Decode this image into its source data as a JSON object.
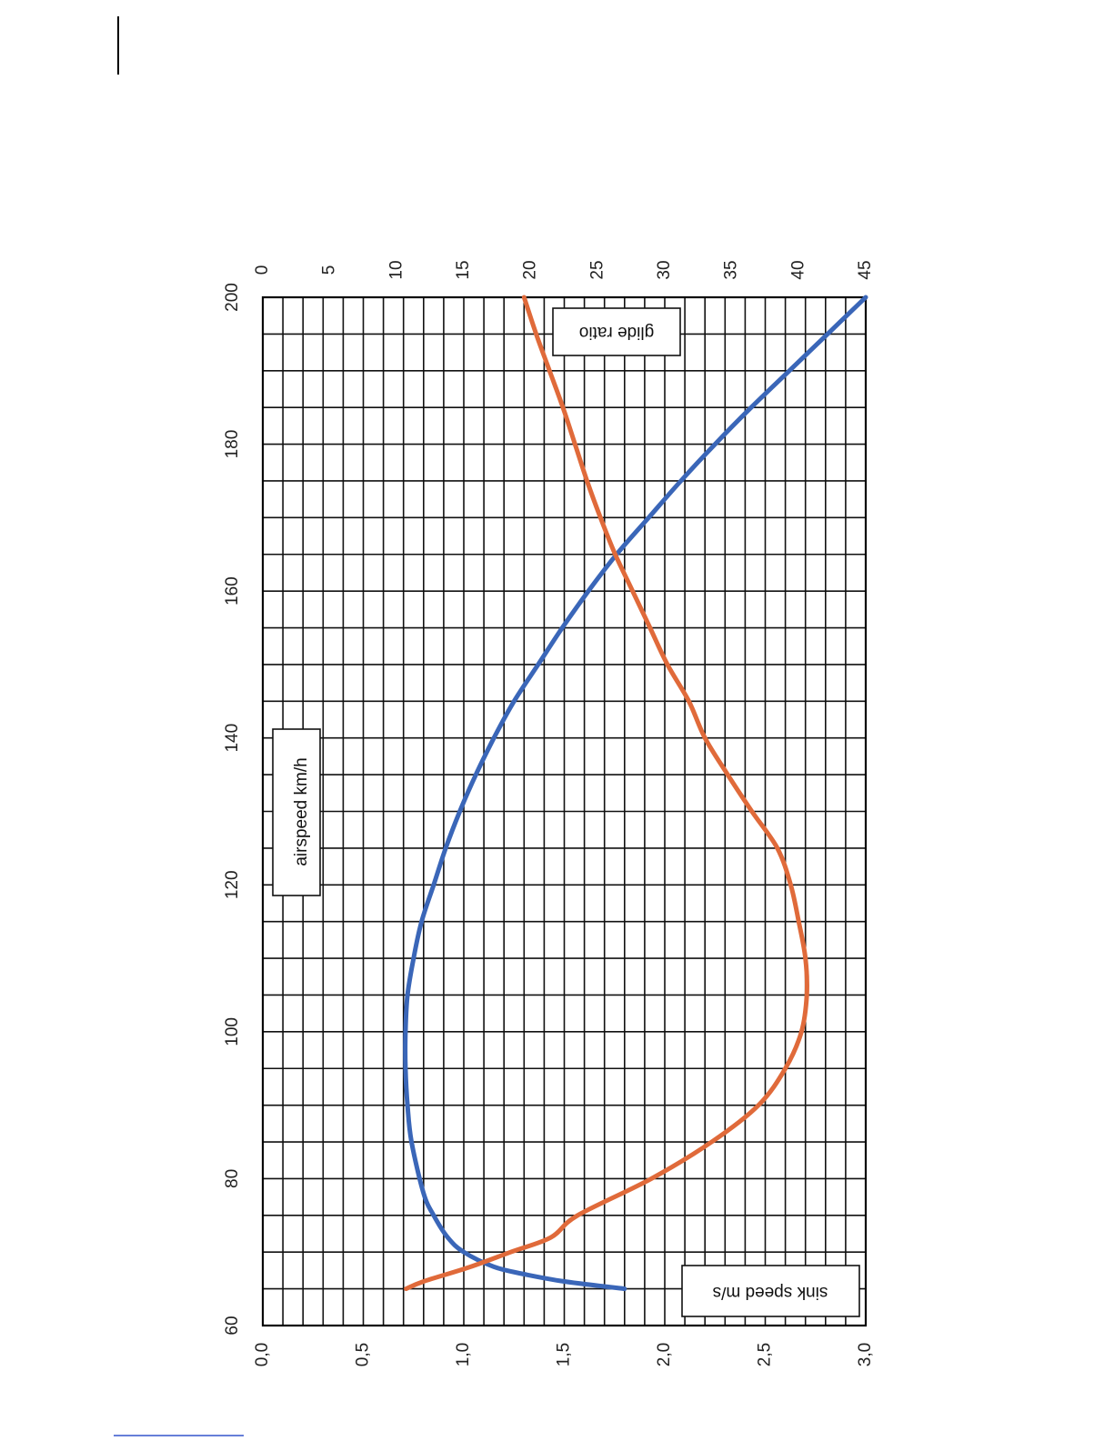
{
  "chart_data": {
    "type": "line",
    "orientation": "rotated-90",
    "x_axis": {
      "label": "airspeed km/h",
      "range": [
        60,
        200
      ],
      "ticks": [
        "60",
        "80",
        "100",
        "120",
        "140",
        "160",
        "180",
        "200"
      ],
      "minor_step": 5
    },
    "y_left": {
      "label": "sink speed m/s",
      "range": [
        0,
        3
      ],
      "ticks": [
        "0,0",
        "0,5",
        "1,0",
        "1,5",
        "2,0",
        "2,5",
        "3,0"
      ]
    },
    "y_right": {
      "label": "glide ratio",
      "range": [
        0,
        45
      ],
      "ticks": [
        "0",
        "5",
        "10",
        "15",
        "20",
        "25",
        "30",
        "35",
        "40",
        "45"
      ]
    },
    "grid": true,
    "series": [
      {
        "name": "sink speed",
        "axis": "left",
        "color": "#3a66b8",
        "x": [
          65,
          66,
          67,
          68,
          70,
          72,
          75,
          78,
          85,
          90,
          95,
          100,
          105,
          110,
          115,
          120,
          125,
          130,
          135,
          140,
          145,
          150,
          155,
          160,
          165,
          170,
          175,
          180,
          185,
          190,
          195,
          200
        ],
        "y": [
          1.8,
          1.5,
          1.3,
          1.15,
          1.0,
          0.92,
          0.85,
          0.8,
          0.74,
          0.72,
          0.71,
          0.71,
          0.72,
          0.75,
          0.79,
          0.85,
          0.91,
          0.98,
          1.06,
          1.15,
          1.25,
          1.37,
          1.49,
          1.62,
          1.76,
          1.92,
          2.08,
          2.25,
          2.43,
          2.62,
          2.81,
          3.0
        ]
      },
      {
        "name": "glide ratio",
        "axis": "right",
        "color": "#e06a3a",
        "x": [
          65,
          66,
          68,
          70,
          72,
          75,
          80,
          85,
          90,
          95,
          100,
          105,
          110,
          115,
          120,
          125,
          130,
          135,
          140,
          145,
          150,
          155,
          160,
          165,
          170,
          175,
          180,
          185,
          190,
          195,
          200
        ],
        "y": [
          10.7,
          12.0,
          15.5,
          18.5,
          21.5,
          23.5,
          29.0,
          33.5,
          37.0,
          39.0,
          40.2,
          40.6,
          40.5,
          40.0,
          39.4,
          38.4,
          36.5,
          34.7,
          33.0,
          31.8,
          30.2,
          28.9,
          27.6,
          26.3,
          25.2,
          24.2,
          23.3,
          22.4,
          21.4,
          20.4,
          19.5
        ]
      }
    ]
  }
}
